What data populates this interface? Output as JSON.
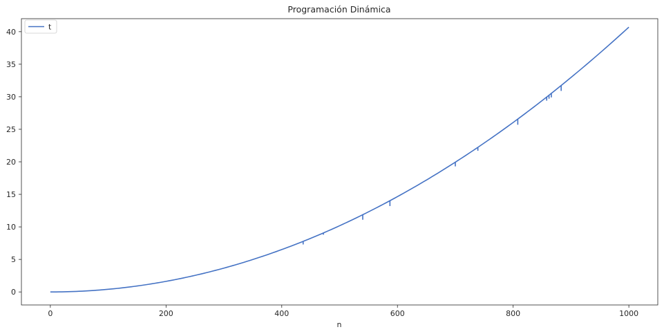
{
  "chart_data": {
    "type": "line",
    "title": "Programación Dinámica",
    "xlabel": "n",
    "ylabel": "",
    "xlim": [
      -50,
      1050
    ],
    "ylim": [
      -2,
      42
    ],
    "xticks": [
      0,
      200,
      400,
      600,
      800,
      1000
    ],
    "yticks": [
      0,
      5,
      10,
      15,
      20,
      25,
      30,
      35,
      40
    ],
    "grid": false,
    "legend_position": "top-left",
    "series": [
      {
        "name": "t",
        "color": "#4472c4",
        "model": "quadratic",
        "coefficient": 4.07e-05,
        "x_range": [
          0,
          1000
        ],
        "spikes": [
          {
            "x": 230,
            "y": 2.1
          },
          {
            "x": 437,
            "y": 7.3
          },
          {
            "x": 472,
            "y": 8.8
          },
          {
            "x": 540,
            "y": 11.1
          },
          {
            "x": 587,
            "y": 13.2
          },
          {
            "x": 700,
            "y": 19.3
          },
          {
            "x": 739,
            "y": 21.7
          },
          {
            "x": 808,
            "y": 25.7
          },
          {
            "x": 858,
            "y": 29.4
          },
          {
            "x": 862,
            "y": 29.7
          },
          {
            "x": 866,
            "y": 29.9
          },
          {
            "x": 883,
            "y": 30.9
          }
        ]
      }
    ]
  }
}
